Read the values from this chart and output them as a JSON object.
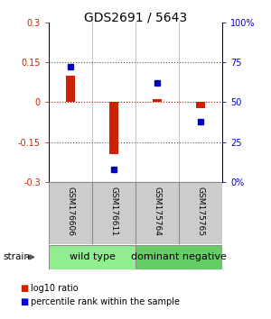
{
  "title": "GDS2691 / 5643",
  "samples": [
    "GSM176606",
    "GSM176611",
    "GSM175764",
    "GSM175765"
  ],
  "log10_ratio": [
    0.1,
    -0.195,
    0.012,
    -0.022
  ],
  "percentile_rank": [
    72,
    8,
    62,
    38
  ],
  "groups": [
    {
      "label": "wild type",
      "color": "#90EE90",
      "start": 0,
      "end": 2
    },
    {
      "label": "dominant negative",
      "color": "#66CC66",
      "start": 2,
      "end": 4
    }
  ],
  "ylim_left": [
    -0.3,
    0.3
  ],
  "ylim_right": [
    0,
    100
  ],
  "left_ticks": [
    -0.3,
    -0.15,
    0.0,
    0.15,
    0.3
  ],
  "right_ticks": [
    0,
    25,
    50,
    75,
    100
  ],
  "left_tick_labels": [
    "-0.3",
    "-0.15",
    "0",
    "0.15",
    "0.3"
  ],
  "right_tick_labels": [
    "0%",
    "25",
    "50",
    "75",
    "100%"
  ],
  "bar_color": "#CC2200",
  "dot_color": "#0000CC",
  "zero_line_color": "#CC0000",
  "hline_color": "#555555",
  "sample_bg_color": "#CCCCCC",
  "legend_red_label": "log10 ratio",
  "legend_blue_label": "percentile rank within the sample",
  "strain_label": "strain",
  "tick_fontsize": 7,
  "sample_label_fontsize": 6.5,
  "group_label_fontsize": 8,
  "title_fontsize": 10,
  "legend_fontsize": 7,
  "strain_fontsize": 7.5,
  "bar_width": 0.22
}
